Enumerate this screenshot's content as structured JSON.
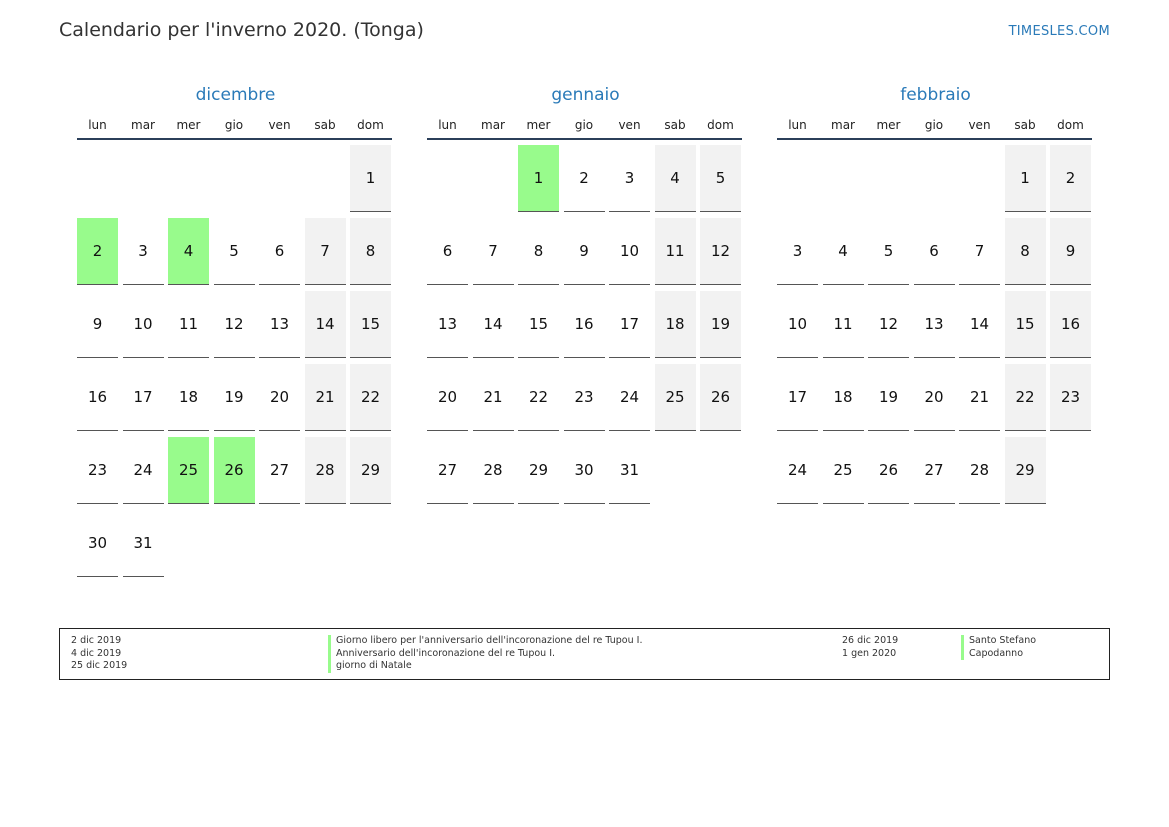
{
  "header": {
    "title": "Calendario per l'inverno 2020. (Tonga)",
    "brand": "TIMESLES.COM"
  },
  "weekdays": [
    "lun",
    "mar",
    "mer",
    "gio",
    "ven",
    "sab",
    "dom"
  ],
  "months": [
    {
      "name": "dicembre",
      "start_offset": 6,
      "days": 31,
      "holidays": [
        2,
        4,
        25,
        26
      ]
    },
    {
      "name": "gennaio",
      "start_offset": 2,
      "days": 31,
      "holidays": [
        1
      ]
    },
    {
      "name": "febbraio",
      "start_offset": 5,
      "days": 29,
      "holidays": []
    }
  ],
  "legend": {
    "left": [
      {
        "date": "2 dic 2019",
        "name": "Giorno libero per l'anniversario dell'incoronazione del re Tupou I."
      },
      {
        "date": "4 dic 2019",
        "name": "Anniversario dell'incoronazione del re Tupou I."
      },
      {
        "date": "25 dic 2019",
        "name": "giorno di Natale"
      }
    ],
    "right": [
      {
        "date": "26 dic 2019",
        "name": "Santo Stefano"
      },
      {
        "date": "1 gen 2020",
        "name": "Capodanno"
      }
    ]
  },
  "colors": {
    "holiday": "#98fb8c",
    "weekend": "#f2f2f2",
    "accent": "#2a7ab8",
    "rule": "#2b3f59"
  }
}
